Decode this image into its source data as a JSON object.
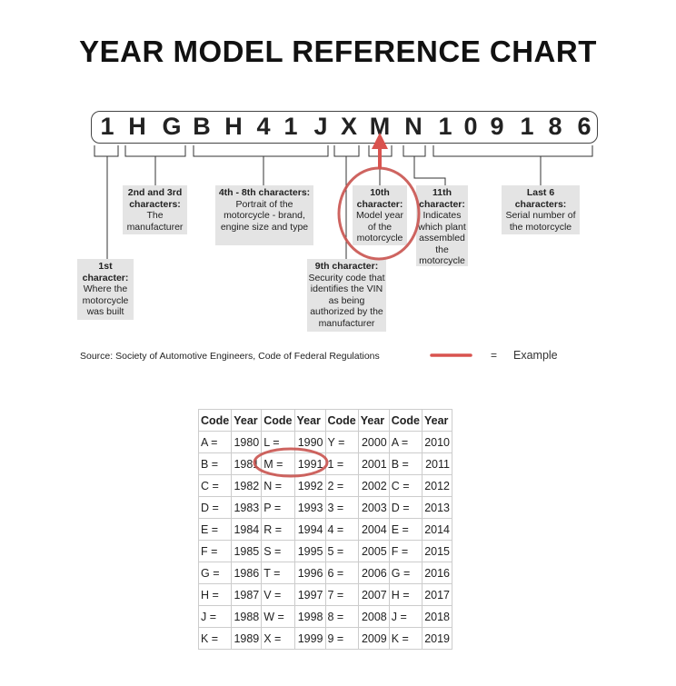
{
  "title": "YEAR MODEL REFERENCE CHART",
  "vin": [
    "1",
    "H",
    "G",
    "B",
    "H",
    "4",
    "1",
    "J",
    "X",
    "M",
    "N",
    "1",
    "0",
    "9",
    "1",
    "8",
    "6"
  ],
  "labels": {
    "first": {
      "head": "1st character:",
      "body": "Where the motorcycle was built"
    },
    "second_third": {
      "head": "2nd and 3rd characters:",
      "body": "The manufacturer"
    },
    "fourth_eighth": {
      "head": "4th - 8th characters:",
      "body": "Portrait of the motorcycle - brand, engine size and type"
    },
    "ninth": {
      "head": "9th character:",
      "body": "Security code that identifies the VIN as being authorized by the manufacturer"
    },
    "tenth": {
      "head": "10th character:",
      "body": "Model year of the motorcycle"
    },
    "eleventh": {
      "head": "11th character:",
      "body": "Indicates which plant assembled the motorcycle"
    },
    "last6": {
      "head": "Last 6 characters:",
      "body": "Serial number of the motorcycle"
    }
  },
  "source": "Source:  Society of Automotive Engineers, Code of Federal Regulations",
  "legend": {
    "equals": "=",
    "label": "Example",
    "color": "#d9534f"
  },
  "highlight_color": "#c9534f",
  "table": {
    "headers": [
      "Code",
      "Year",
      "Code",
      "Year",
      "Code",
      "Year",
      "Code",
      "Year"
    ],
    "rows": [
      [
        "A =",
        "1980",
        "L =",
        "1990",
        "Y =",
        "2000",
        "A =",
        "2010"
      ],
      [
        "B =",
        "1981",
        "M =",
        "1991",
        "1 =",
        "2001",
        "B =",
        "2011"
      ],
      [
        "C =",
        "1982",
        "N =",
        "1992",
        "2 =",
        "2002",
        "C =",
        "2012"
      ],
      [
        "D =",
        "1983",
        "P =",
        "1993",
        "3 =",
        "2003",
        "D =",
        "2013"
      ],
      [
        "E =",
        "1984",
        "R =",
        "1994",
        "4 =",
        "2004",
        "E =",
        "2014"
      ],
      [
        "F =",
        "1985",
        "S =",
        "1995",
        "5 =",
        "2005",
        "F =",
        "2015"
      ],
      [
        "G =",
        "1986",
        "T =",
        "1996",
        "6 =",
        "2006",
        "G =",
        "2016"
      ],
      [
        "H =",
        "1987",
        "V =",
        "1997",
        "7 =",
        "2007",
        "H =",
        "2017"
      ],
      [
        "J =",
        "1988",
        "W =",
        "1998",
        "8 =",
        "2008",
        "J =",
        "2018"
      ],
      [
        "K =",
        "1989",
        "X =",
        "1999",
        "9 =",
        "2009",
        "K =",
        "2019"
      ]
    ],
    "highlighted": {
      "code": "M =",
      "year": "1991"
    }
  }
}
